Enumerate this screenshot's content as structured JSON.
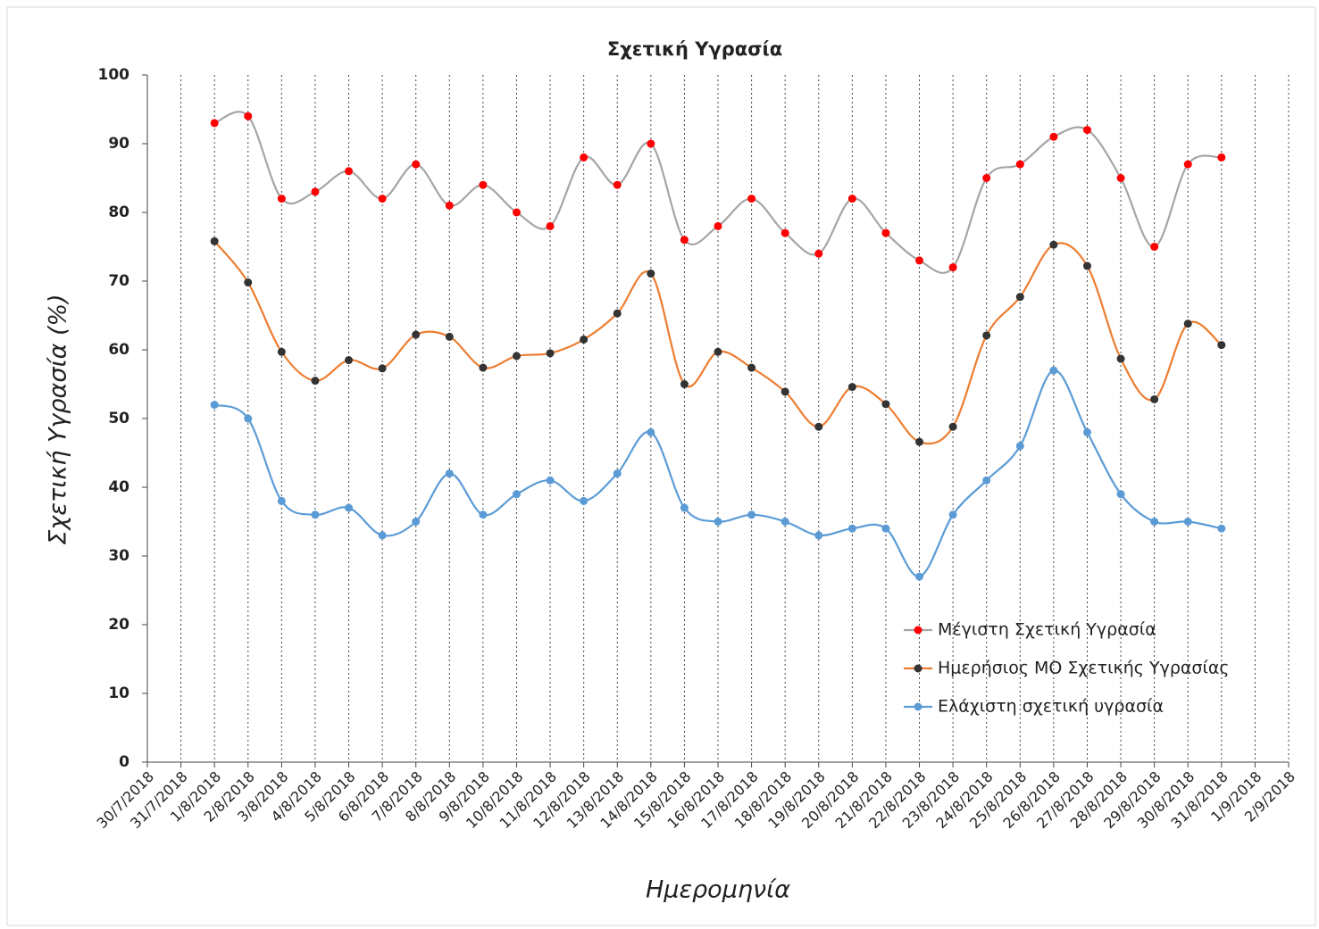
{
  "chart_data": {
    "type": "line",
    "title": "Σχετική Υγρασία",
    "x_label": "Ημερομηνία",
    "y_label": "Σχετική Υγρασία (%)",
    "categories": [
      "30/7/2018",
      "31/7/2018",
      "1/8/2018",
      "2/8/2018",
      "3/8/2018",
      "4/8/2018",
      "5/8/2018",
      "6/8/2018",
      "7/8/2018",
      "8/8/2018",
      "9/8/2018",
      "10/8/2018",
      "11/8/2018",
      "12/8/2018",
      "13/8/2018",
      "14/8/2018",
      "15/8/2018",
      "16/8/2018",
      "17/8/2018",
      "18/8/2018",
      "19/8/2018",
      "20/8/2018",
      "21/8/2018",
      "22/8/2018",
      "23/8/2018",
      "24/8/2018",
      "25/8/2018",
      "26/8/2018",
      "27/8/2018",
      "28/8/2018",
      "29/8/2018",
      "30/8/2018",
      "31/8/2018",
      "1/9/2018",
      "2/9/2018"
    ],
    "series": [
      {
        "name": "Μέγιστη Σχετική Υγρασία",
        "color": "#a5a5a5",
        "marker_color": "#ff0000",
        "values": [
          null,
          null,
          93,
          94,
          82,
          83,
          86,
          82,
          87,
          81,
          84,
          80,
          78,
          88,
          84,
          90,
          76,
          78,
          82,
          77,
          74,
          82,
          77,
          73,
          72,
          85,
          87,
          91,
          92,
          85,
          75,
          87,
          88,
          null,
          null
        ]
      },
      {
        "name": "Ημερήσιος ΜΟ Σχετικής Υγρασίας",
        "color": "#ed7d31",
        "marker_color": "#333333",
        "values": [
          null,
          null,
          75.8,
          69.8,
          59.7,
          55.5,
          58.5,
          57.3,
          62.2,
          61.9,
          57.4,
          59.1,
          59.5,
          61.5,
          65.3,
          71.1,
          55.0,
          59.7,
          57.4,
          53.9,
          48.8,
          54.6,
          52.1,
          46.6,
          48.8,
          62.1,
          67.7,
          75.3,
          72.2,
          58.7,
          52.8,
          63.8,
          60.7,
          null,
          null
        ]
      },
      {
        "name": "Ελάχιστη σχετική υγρασία",
        "color": "#5b9bd5",
        "marker_color": "#5b9bd5",
        "values": [
          null,
          null,
          52,
          50,
          38,
          36,
          37,
          33,
          35,
          42,
          36,
          39,
          41,
          38,
          42,
          48,
          37,
          35,
          36,
          35,
          33,
          34,
          34,
          27,
          36,
          41,
          46,
          57,
          48,
          39,
          35,
          35,
          34,
          null,
          null
        ]
      }
    ],
    "ylim": [
      0,
      100
    ],
    "yticks": [
      0,
      10,
      20,
      30,
      40,
      50,
      60,
      70,
      80,
      90,
      100
    ],
    "x_grid": true,
    "legend_position": "lower right",
    "smooth": true
  }
}
